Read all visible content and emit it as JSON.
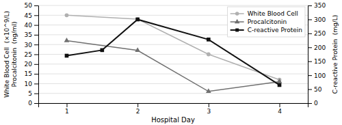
{
  "chart_data": {
    "type": "line",
    "xlabel": "Hospital Day",
    "ylabel": "White Blood Cell  (×10^9/L)\nProcalcitonin  (ng/ml)",
    "y2label": "C-reactive Protein  (mg/L)",
    "xlim": [
      0.6,
      4.4
    ],
    "xticks": [
      1,
      2,
      3,
      4
    ],
    "ylim": [
      0,
      50
    ],
    "yticks": [
      0,
      5,
      10,
      15,
      20,
      25,
      30,
      35,
      40,
      45,
      50
    ],
    "y2lim": [
      0,
      350
    ],
    "y2ticks": [
      0,
      50,
      100,
      150,
      200,
      250,
      300,
      350
    ],
    "grid": true,
    "legend": "upper right",
    "series": [
      {
        "name": "White Blood Cell",
        "color": "#b0b0b0",
        "marker": "circle",
        "x": [
          1,
          2,
          3,
          4
        ],
        "values": [
          45,
          43,
          25,
          12
        ]
      },
      {
        "name": "Procalcitonin",
        "color": "#707070",
        "marker": "triangle",
        "x": [
          1,
          2,
          3,
          4
        ],
        "values": [
          32,
          27,
          6,
          11
        ]
      },
      {
        "name": "C-reactive Protein",
        "color": "#111111",
        "marker": "square",
        "axis": "y2",
        "x": [
          1,
          1.5,
          2,
          3,
          4
        ],
        "values": [
          170,
          190,
          300,
          228,
          65
        ]
      }
    ]
  }
}
